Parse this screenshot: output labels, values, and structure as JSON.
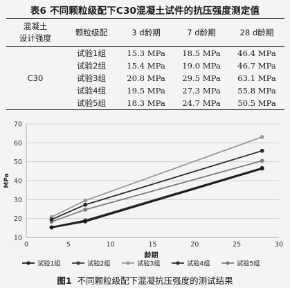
{
  "table": {
    "title": "表6  不同颗粒级配下C30混凝土试件的抗压强度测定值",
    "headers": {
      "grade_line1": "混凝土",
      "grade_line2": "设计强度",
      "group": "颗粒级配",
      "d3": "3 d龄期",
      "d7": "7 d龄期",
      "d28": "28 d龄期"
    },
    "grade": "C30",
    "rows": [
      {
        "group": "试验1组",
        "d3": "15.3 MPa",
        "d7": "18.5 MPa",
        "d28": "46.4 MPa"
      },
      {
        "group": "试验2组",
        "d3": "15.4 MPa",
        "d7": "19.0 MPa",
        "d28": "46.7 MPa"
      },
      {
        "group": "试验3组",
        "d3": "20.8 MPa",
        "d7": "29.5 MPa",
        "d28": "63.1 MPa"
      },
      {
        "group": "试验4组",
        "d3": "19.5 MPa",
        "d7": "27.3 MPa",
        "d28": "55.8 MPa"
      },
      {
        "group": "试验5组",
        "d3": "18.3 MPa",
        "d7": "24.7 MPa",
        "d28": "50.5 MPa"
      }
    ]
  },
  "chart_data": {
    "type": "line",
    "xlabel": "龄期",
    "ylabel": "MPa",
    "xlim": [
      0,
      30
    ],
    "ylim": [
      10,
      70
    ],
    "xticks": [
      0,
      5,
      10,
      15,
      20,
      25,
      30
    ],
    "yticks": [
      10,
      20,
      30,
      40,
      50,
      60,
      70
    ],
    "grid": "horizontal",
    "legend_position": "bottom",
    "x": [
      3,
      7,
      28
    ],
    "series": [
      {
        "name": "试验1组",
        "values": [
          15.3,
          18.5,
          46.4
        ],
        "color": "#1e1e1e",
        "width": 2.6
      },
      {
        "name": "试验2组",
        "values": [
          15.4,
          19.0,
          46.7
        ],
        "color": "#3a3a3a",
        "width": 2.2
      },
      {
        "name": "试验3组",
        "values": [
          20.8,
          29.5,
          63.1
        ],
        "color": "#9a9a9a",
        "width": 1.8
      },
      {
        "name": "试验4组",
        "values": [
          19.5,
          27.3,
          55.8
        ],
        "color": "#2a2a2a",
        "width": 1.8
      },
      {
        "name": "试验5组",
        "values": [
          18.3,
          24.7,
          50.5
        ],
        "color": "#7c7c7c",
        "width": 1.8
      }
    ]
  },
  "figure": {
    "number": "图1",
    "caption": "不同颗粒级配下混凝抗压强度的测试结果"
  }
}
